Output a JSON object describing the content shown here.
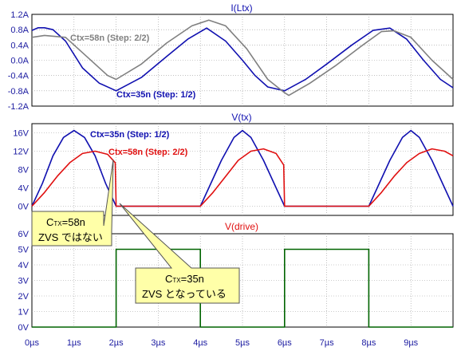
{
  "colors": {
    "blue": "#1010b0",
    "gray": "#808080",
    "red": "#e01010",
    "green": "#006400",
    "axis_text": "#1a1aa0",
    "title_blue": "#1010b0",
    "title_red": "#e01010",
    "grid": "#9a9a9a",
    "callout_fill": "#ffffa8"
  },
  "x_ticks": [
    "0µs",
    "1µs",
    "2µs",
    "3µs",
    "4µs",
    "5µs",
    "6µs",
    "7µs",
    "8µs",
    "9µs"
  ],
  "callouts": [
    {
      "prefix": "C",
      "sub": "TX",
      "value": "=58n",
      "note": "ZVS ではない"
    },
    {
      "prefix": "C",
      "sub": "TX",
      "value": "=35n",
      "note": "ZVS となっている"
    }
  ],
  "chart_data": [
    {
      "type": "line",
      "title": "I(Ltx)",
      "xlim": [
        0,
        10
      ],
      "ylim": [
        -1.2,
        1.2
      ],
      "yticks": [
        "1.2A",
        "0.8A",
        "0.4A",
        "0.0A",
        "-0.4A",
        "-0.8A",
        "-1.2A"
      ],
      "labels": [
        {
          "text": "Ctx=58n  (Step: 2/2)",
          "series": 1
        },
        {
          "text": "Ctx=35n  (Step: 1/2)",
          "series": 0
        }
      ],
      "series": [
        {
          "name": "Ctx=35n  (Step: 1/2)",
          "color": "blue",
          "x": [
            0,
            0.15,
            0.3,
            0.5,
            0.8,
            1.2,
            1.6,
            2.0,
            2.6,
            3.2,
            3.7,
            4.15,
            4.6,
            5.0,
            5.3,
            5.6,
            6.0,
            6.5,
            7.0,
            7.6,
            8.1,
            8.5,
            8.9,
            9.3,
            9.7,
            10
          ],
          "y": [
            0.78,
            0.85,
            0.85,
            0.8,
            0.5,
            -0.2,
            -0.6,
            -0.8,
            -0.45,
            0.1,
            0.55,
            0.84,
            0.5,
            0.0,
            -0.4,
            -0.7,
            -0.8,
            -0.5,
            -0.1,
            0.4,
            0.78,
            0.84,
            0.55,
            0.0,
            -0.5,
            -0.72
          ]
        },
        {
          "name": "Ctx=58n  (Step: 2/2)",
          "color": "gray",
          "x": [
            0,
            0.3,
            0.8,
            1.3,
            1.8,
            2.0,
            2.6,
            3.2,
            3.8,
            4.2,
            4.6,
            5.1,
            5.6,
            6.0,
            6.1,
            6.6,
            7.2,
            7.8,
            8.3,
            8.6,
            9.0,
            9.5,
            10
          ],
          "y": [
            0.6,
            0.65,
            0.6,
            0.1,
            -0.4,
            -0.5,
            -0.1,
            0.45,
            0.9,
            1.05,
            0.9,
            0.3,
            -0.5,
            -0.85,
            -0.92,
            -0.6,
            -0.15,
            0.35,
            0.75,
            0.77,
            0.6,
            0.0,
            -0.5
          ]
        }
      ]
    },
    {
      "type": "line",
      "title": "V(tx)",
      "xlim": [
        0,
        10
      ],
      "ylim": [
        -2,
        18
      ],
      "yticks": [
        "16V",
        "12V",
        "8V",
        "4V",
        "0V"
      ],
      "labels": [
        {
          "text": "Ctx=35n  (Step: 1/2)",
          "series": 0
        },
        {
          "text": "Ctx=58n  (Step: 2/2)",
          "series": 1
        }
      ],
      "series": [
        {
          "name": "Ctx=35n  (Step: 1/2)",
          "color": "blue",
          "x": [
            0,
            0.25,
            0.5,
            0.75,
            1.0,
            1.25,
            1.5,
            1.75,
            2.0,
            2.2,
            4.0,
            4.2,
            4.5,
            4.8,
            5.0,
            5.2,
            5.5,
            5.8,
            6.0,
            6.2,
            8.0,
            8.2,
            8.5,
            8.8,
            9.0,
            9.2,
            9.5,
            9.8,
            10
          ],
          "y": [
            0,
            5,
            11,
            15,
            16.5,
            15,
            11,
            5,
            0,
            0,
            0,
            4,
            10,
            15,
            16.5,
            15,
            10,
            4,
            0,
            0,
            0,
            4,
            10,
            15,
            16.5,
            15,
            10,
            4,
            0
          ]
        },
        {
          "name": "Ctx=58n  (Step: 2/2)",
          "color": "red",
          "x": [
            0,
            0.3,
            0.6,
            0.9,
            1.2,
            1.5,
            1.8,
            1.98,
            2.0,
            2.2,
            4.0,
            4.3,
            4.6,
            4.9,
            5.2,
            5.5,
            5.8,
            5.98,
            6.0,
            6.2,
            8.0,
            8.3,
            8.6,
            8.9,
            9.2,
            9.5,
            9.8,
            10
          ],
          "y": [
            0,
            3,
            6.5,
            9.5,
            11.5,
            12,
            11.3,
            9.5,
            0,
            0,
            0,
            3,
            6.5,
            10,
            12,
            12.5,
            11.5,
            9,
            0,
            0,
            0,
            3,
            6.5,
            9.5,
            11.5,
            12.5,
            12,
            11
          ]
        }
      ]
    },
    {
      "type": "line",
      "title": "V(drive)",
      "xlim": [
        0,
        10
      ],
      "ylim": [
        0,
        6
      ],
      "yticks": [
        "6V",
        "5V",
        "4V",
        "3V",
        "2V",
        "1V",
        "0V"
      ],
      "series": [
        {
          "name": "",
          "color": "green",
          "x": [
            0,
            2,
            2,
            4,
            4,
            6,
            6,
            8,
            8,
            10
          ],
          "y": [
            0,
            0,
            5,
            5,
            0,
            0,
            5,
            5,
            0,
            0
          ]
        }
      ]
    }
  ]
}
